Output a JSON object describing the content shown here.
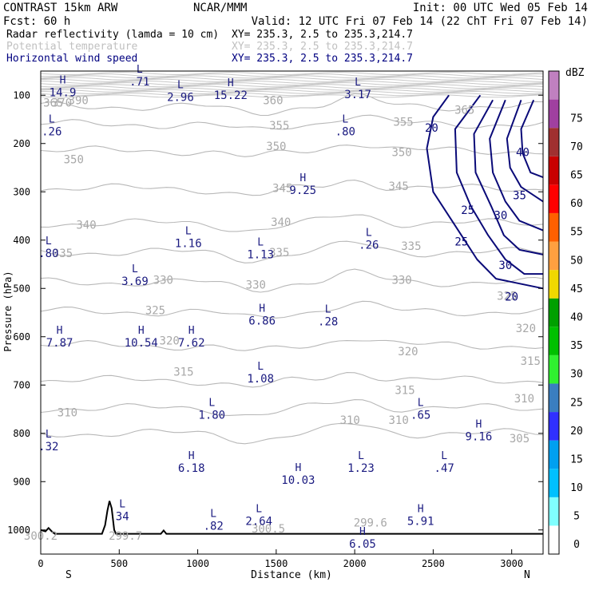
{
  "header": {
    "model": "CONTRAST 15km ARW",
    "source": "NCAR/MMM",
    "init": "Init: 00 UTC Wed 05 Feb 14",
    "fcst": "Fcst:   60 h",
    "valid": "Valid: 12 UTC Fri 07 Feb 14 (22 ChT Fri 07 Feb 14)",
    "fields": [
      {
        "name": "Radar reflectivity (lamda = 10 cm)",
        "xy": "XY= 235.3,  2.5 to 235.3,214.7",
        "color": "#000000"
      },
      {
        "name": "Potential temperature",
        "xy": "XY= 235.3,  2.5 to 235.3,214.7",
        "color": "#c0c0c0"
      },
      {
        "name": "Horizontal wind speed",
        "xy": "XY= 235.3,  2.5 to 235.3,214.7",
        "color": "#000080"
      }
    ]
  },
  "chart_data": {
    "type": "cross-section",
    "xlabel": "Distance (km)",
    "ylabel": "Pressure (hPa)",
    "xlim": [
      0,
      3200
    ],
    "ylim": [
      1050,
      50
    ],
    "x_ticks": [
      0,
      500,
      1000,
      1500,
      2000,
      2500,
      3000
    ],
    "y_ticks": [
      100,
      200,
      300,
      400,
      500,
      600,
      700,
      800,
      900,
      1000
    ],
    "x_end_labels": {
      "left": "S",
      "right": "N"
    },
    "colorbar": {
      "title": "dBZ",
      "levels": [
        0,
        5,
        10,
        15,
        20,
        25,
        30,
        35,
        40,
        45,
        50,
        55,
        60,
        65,
        70,
        75
      ],
      "colors": [
        "#ffffff",
        "#80ffff",
        "#00c0ff",
        "#00a0f0",
        "#3030ff",
        "#3a7ec0",
        "#30f030",
        "#00c000",
        "#00a000",
        "#f0d800",
        "#ffa040",
        "#ff6000",
        "#ff0000",
        "#c80000",
        "#a03030",
        "#a040a0",
        "#c080c0"
      ]
    },
    "theta_labels": [
      {
        "x": 80,
        "p": 115,
        "text": "365"
      },
      {
        "x": 135,
        "p": 115,
        "text": "370"
      },
      {
        "x": 240,
        "p": 110,
        "text": "390"
      },
      {
        "x": 1480,
        "p": 110,
        "text": "360"
      },
      {
        "x": 1520,
        "p": 162,
        "text": "355"
      },
      {
        "x": 2310,
        "p": 155,
        "text": "355"
      },
      {
        "x": 2700,
        "p": 130,
        "text": "365"
      },
      {
        "x": 1500,
        "p": 205,
        "text": "350"
      },
      {
        "x": 2300,
        "p": 218,
        "text": "350"
      },
      {
        "x": 210,
        "p": 233,
        "text": "350"
      },
      {
        "x": 1540,
        "p": 292,
        "text": "345"
      },
      {
        "x": 2280,
        "p": 288,
        "text": "345"
      },
      {
        "x": 1530,
        "p": 362,
        "text": "340"
      },
      {
        "x": 290,
        "p": 368,
        "text": "340"
      },
      {
        "x": 140,
        "p": 427,
        "text": "335"
      },
      {
        "x": 1520,
        "p": 425,
        "text": "335"
      },
      {
        "x": 2360,
        "p": 412,
        "text": "335"
      },
      {
        "x": 780,
        "p": 482,
        "text": "330"
      },
      {
        "x": 1370,
        "p": 492,
        "text": "330"
      },
      {
        "x": 2300,
        "p": 482,
        "text": "330"
      },
      {
        "x": 730,
        "p": 545,
        "text": "325"
      },
      {
        "x": 2970,
        "p": 515,
        "text": "325"
      },
      {
        "x": 3090,
        "p": 582,
        "text": "320"
      },
      {
        "x": 2340,
        "p": 630,
        "text": "320"
      },
      {
        "x": 820,
        "p": 608,
        "text": "320"
      },
      {
        "x": 910,
        "p": 672,
        "text": "315"
      },
      {
        "x": 2320,
        "p": 710,
        "text": "315"
      },
      {
        "x": 3120,
        "p": 650,
        "text": "315"
      },
      {
        "x": 170,
        "p": 757,
        "text": "310"
      },
      {
        "x": 1970,
        "p": 772,
        "text": "310"
      },
      {
        "x": 2280,
        "p": 772,
        "text": "310"
      },
      {
        "x": 3080,
        "p": 728,
        "text": "310"
      },
      {
        "x": 3050,
        "p": 810,
        "text": "305"
      },
      {
        "x": 540,
        "p": 1012,
        "text": "299.7"
      },
      {
        "x": 1450,
        "p": 997,
        "text": "300.5"
      },
      {
        "x": 2100,
        "p": 985,
        "text": "299.6"
      },
      {
        "x": 0,
        "p": 1012,
        "text": "300.2"
      }
    ],
    "wind_labels": [
      {
        "x": 2490,
        "p": 167,
        "text": "20"
      },
      {
        "x": 2720,
        "p": 338,
        "text": "25"
      },
      {
        "x": 2680,
        "p": 403,
        "text": "25"
      },
      {
        "x": 2930,
        "p": 348,
        "text": "30"
      },
      {
        "x": 2960,
        "p": 452,
        "text": "30"
      },
      {
        "x": 3050,
        "p": 307,
        "text": "35"
      },
      {
        "x": 3070,
        "p": 218,
        "text": "40"
      },
      {
        "x": 3000,
        "p": 517,
        "text": "20"
      }
    ],
    "extrema": [
      {
        "type": "H",
        "value": "14.9",
        "x": 140,
        "p": 82
      },
      {
        "type": "L",
        "value": ".71",
        "x": 630,
        "p": 60
      },
      {
        "type": "L",
        "value": "2.96",
        "x": 890,
        "p": 92
      },
      {
        "type": "H",
        "value": "15.22",
        "x": 1210,
        "p": 88
      },
      {
        "type": "L",
        "value": "3.17",
        "x": 2020,
        "p": 86
      },
      {
        "type": "L",
        "value": ".26",
        "x": 70,
        "p": 163
      },
      {
        "type": "L",
        "value": ".80",
        "x": 1940,
        "p": 163
      },
      {
        "type": "H",
        "value": "9.25",
        "x": 1670,
        "p": 285
      },
      {
        "type": "L",
        "value": "1.16",
        "x": 940,
        "p": 395
      },
      {
        "type": "L",
        "value": ".80",
        "x": 50,
        "p": 415
      },
      {
        "type": "L",
        "value": "1.13",
        "x": 1400,
        "p": 418
      },
      {
        "type": "L",
        "value": ".26",
        "x": 2090,
        "p": 398
      },
      {
        "type": "L",
        "value": "3.69",
        "x": 600,
        "p": 473
      },
      {
        "type": "H",
        "value": "6.86",
        "x": 1410,
        "p": 555
      },
      {
        "type": "L",
        "value": ".28",
        "x": 1830,
        "p": 557
      },
      {
        "type": "H",
        "value": "7.87",
        "x": 120,
        "p": 600
      },
      {
        "type": "H",
        "value": "10.54",
        "x": 640,
        "p": 600
      },
      {
        "type": "H",
        "value": "7.62",
        "x": 960,
        "p": 600
      },
      {
        "type": "L",
        "value": "1.08",
        "x": 1400,
        "p": 675
      },
      {
        "type": "L",
        "value": "1.80",
        "x": 1090,
        "p": 750
      },
      {
        "type": "L",
        "value": ".65",
        "x": 2420,
        "p": 750
      },
      {
        "type": "H",
        "value": "9.16",
        "x": 2790,
        "p": 795
      },
      {
        "type": "L",
        "value": ".32",
        "x": 50,
        "p": 815
      },
      {
        "type": "H",
        "value": "6.18",
        "x": 960,
        "p": 860
      },
      {
        "type": "L",
        "value": "1.23",
        "x": 2040,
        "p": 860
      },
      {
        "type": "L",
        "value": ".47",
        "x": 2570,
        "p": 860
      },
      {
        "type": "H",
        "value": "10.03",
        "x": 1640,
        "p": 885
      },
      {
        "type": "L",
        "value": "34",
        "x": 520,
        "p": 960
      },
      {
        "type": "L",
        "value": ".82",
        "x": 1100,
        "p": 980
      },
      {
        "type": "L",
        "value": "2.64",
        "x": 1390,
        "p": 970
      },
      {
        "type": "H",
        "value": "5.91",
        "x": 2420,
        "p": 970
      },
      {
        "type": "H",
        "value": "6.05",
        "x": 2050,
        "p": 1017
      }
    ],
    "terrain": [
      [
        0,
        1000
      ],
      [
        30,
        1003
      ],
      [
        50,
        996
      ],
      [
        70,
        1003
      ],
      [
        90,
        1008
      ],
      [
        390,
        1008
      ],
      [
        410,
        990
      ],
      [
        425,
        960
      ],
      [
        438,
        940
      ],
      [
        452,
        955
      ],
      [
        468,
        1000
      ],
      [
        480,
        1008
      ],
      [
        765,
        1008
      ],
      [
        783,
        1001
      ],
      [
        800,
        1008
      ],
      [
        3200,
        1008
      ]
    ]
  }
}
